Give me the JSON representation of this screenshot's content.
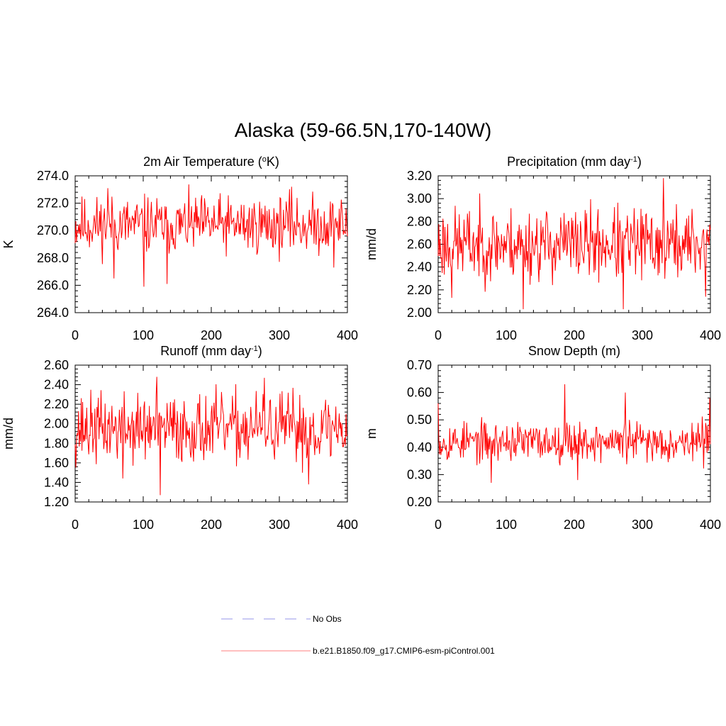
{
  "title": "Alaska (59-66.5N,170-140W)",
  "chart_data": [
    {
      "type": "line",
      "id": "temp",
      "title": "2m Air Temperature (",
      "title_sup": "o",
      "title_end": "K)",
      "xlabel": "",
      "ylabel": "K",
      "xlim": [
        0,
        400
      ],
      "ylim": [
        264.0,
        274.0
      ],
      "xticks": [
        0,
        100,
        200,
        300,
        400
      ],
      "xtick_labels": [
        "0",
        "100",
        "200",
        "300",
        "400"
      ],
      "yticks": [
        264.0,
        266.0,
        268.0,
        270.0,
        272.0,
        274.0
      ],
      "ytick_labels": [
        "264.0",
        "266.0",
        "268.0",
        "270.0",
        "272.0",
        "274.0"
      ],
      "mean": 270.4,
      "amp": 1.3,
      "seed": 11,
      "spikes": [
        [
          48,
          273.1
        ],
        [
          57,
          266.5
        ],
        [
          101,
          265.9
        ],
        [
          135,
          266.1
        ],
        [
          318,
          273.2
        ],
        [
          380,
          267.3
        ]
      ],
      "color": "#ff0000"
    },
    {
      "type": "line",
      "id": "precip",
      "title": "Precipitation (mm day",
      "title_sup": "-1",
      "title_end": ")",
      "xlabel": "",
      "ylabel": "mm/d",
      "xlim": [
        0,
        400
      ],
      "ylim": [
        2.0,
        3.2
      ],
      "xticks": [
        0,
        100,
        200,
        300,
        400
      ],
      "xtick_labels": [
        "0",
        "100",
        "200",
        "300",
        "400"
      ],
      "yticks": [
        2.0,
        2.2,
        2.4,
        2.6,
        2.8,
        3.0,
        3.2
      ],
      "ytick_labels": [
        "2.00",
        "2.20",
        "2.40",
        "2.60",
        "2.80",
        "3.00",
        "3.20"
      ],
      "mean": 2.6,
      "amp": 0.2,
      "seed": 23,
      "spikes": [
        [
          125,
          2.03
        ],
        [
          272,
          2.03
        ],
        [
          331,
          3.18
        ],
        [
          20,
          2.13
        ],
        [
          393,
          2.14
        ]
      ],
      "color": "#ff0000"
    },
    {
      "type": "line",
      "id": "runoff",
      "title": "Runoff (mm day",
      "title_sup": "-1",
      "title_end": ")",
      "xlabel": "",
      "ylabel": "mm/d",
      "xlim": [
        0,
        400
      ],
      "ylim": [
        1.2,
        2.6
      ],
      "xticks": [
        0,
        100,
        200,
        300,
        400
      ],
      "xtick_labels": [
        "0",
        "100",
        "200",
        "300",
        "400"
      ],
      "yticks": [
        1.2,
        1.4,
        1.6,
        1.8,
        2.0,
        2.2,
        2.4,
        2.6
      ],
      "ytick_labels": [
        "1.20",
        "1.40",
        "1.60",
        "1.80",
        "2.00",
        "2.20",
        "2.40",
        "2.60"
      ],
      "mean": 1.95,
      "amp": 0.22,
      "seed": 37,
      "spikes": [
        [
          125,
          1.27
        ],
        [
          120,
          2.48
        ],
        [
          278,
          2.47
        ],
        [
          343,
          1.38
        ],
        [
          70,
          1.44
        ]
      ],
      "color": "#ff0000"
    },
    {
      "type": "line",
      "id": "snow",
      "title": "Snow Depth (m)",
      "title_sup": "",
      "title_end": "",
      "xlabel": "",
      "ylabel": "m",
      "xlim": [
        0,
        400
      ],
      "ylim": [
        0.2,
        0.7
      ],
      "xticks": [
        0,
        100,
        200,
        300,
        400
      ],
      "xtick_labels": [
        "0",
        "100",
        "200",
        "300",
        "400"
      ],
      "yticks": [
        0.2,
        0.3,
        0.4,
        0.5,
        0.6,
        0.7
      ],
      "ytick_labels": [
        "0.20",
        "0.30",
        "0.40",
        "0.50",
        "0.60",
        "0.70"
      ],
      "mean": 0.42,
      "amp": 0.045,
      "seed": 53,
      "spikes": [
        [
          186,
          0.63
        ],
        [
          399,
          0.58
        ],
        [
          0,
          0.56
        ],
        [
          78,
          0.27
        ],
        [
          205,
          0.28
        ],
        [
          275,
          0.6
        ]
      ],
      "color": "#ff0000"
    }
  ],
  "legend": {
    "items": [
      {
        "label": "No Obs",
        "style": "dashed",
        "color": "#aaaaee"
      },
      {
        "label": "b.e21.B1850.f09_g17.CMIP6-esm-piControl.001",
        "style": "solid",
        "color": "#ff9999"
      }
    ]
  }
}
